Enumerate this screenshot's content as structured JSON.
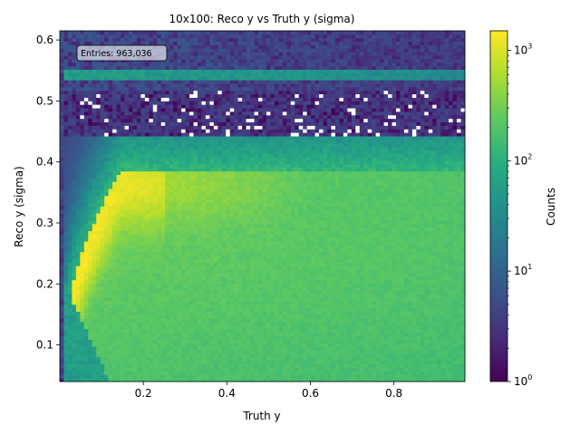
{
  "chart_data": {
    "type": "heatmap",
    "title": "10x100: Reco y vs Truth y (sigma)",
    "xlabel": "Truth y",
    "ylabel": "Reco y (sigma)",
    "xlim": [
      0.0,
      0.97
    ],
    "ylim": [
      0.04,
      0.615
    ],
    "x_ticks": [
      0.2,
      0.4,
      0.6,
      0.8
    ],
    "x_tick_labels": [
      "0.2",
      "0.4",
      "0.6",
      "0.8"
    ],
    "y_ticks": [
      0.1,
      0.2,
      0.3,
      0.4,
      0.5,
      0.6
    ],
    "y_tick_labels": [
      "0.1",
      "0.2",
      "0.3",
      "0.4",
      "0.5",
      "0.6"
    ],
    "annotation": "Entries: 963,036",
    "colorbar": {
      "label": "Counts",
      "scale": "log",
      "range": [
        1,
        1500
      ],
      "ticks": [
        1,
        10,
        100,
        1000
      ],
      "tick_labels": [
        "10",
        "10",
        "10",
        "10"
      ],
      "tick_exponents": [
        "0",
        "1",
        "2",
        "3"
      ],
      "colormap": "viridis"
    },
    "bins": {
      "nx": 100,
      "ny": 100
    },
    "model": {
      "ridge_max_count": 1300,
      "band_count": 260,
      "band_upper_edge": 0.385,
      "plateau_count": 120,
      "sparse_region_count": 4,
      "secondary_band_y": 0.54,
      "secondary_band_count": 60
    }
  }
}
